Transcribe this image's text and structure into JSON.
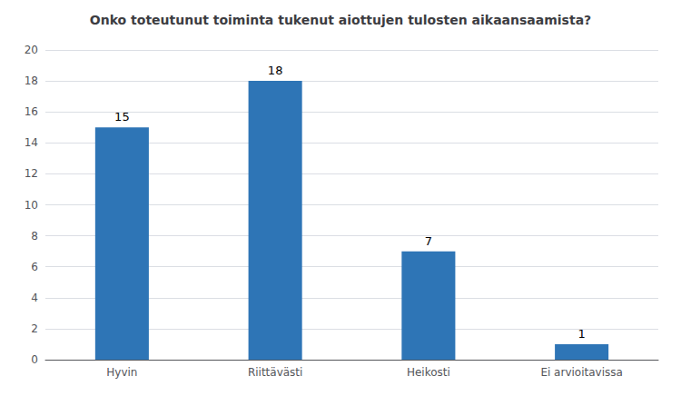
{
  "chart_data": {
    "type": "bar",
    "title": "Onko toteutunut toiminta tukenut aiottujen tulosten aikaansaamista?",
    "categories": [
      "Hyvin",
      "Riittävästi",
      "Heikosti",
      "Ei arvioitavissa"
    ],
    "values": [
      15,
      18,
      7,
      1
    ],
    "color": "#2E75B6",
    "ylim": [
      0,
      20
    ],
    "yticks": [
      0,
      2,
      4,
      6,
      8,
      10,
      12,
      14,
      16,
      18,
      20
    ],
    "grid": true,
    "data_labels": true
  }
}
